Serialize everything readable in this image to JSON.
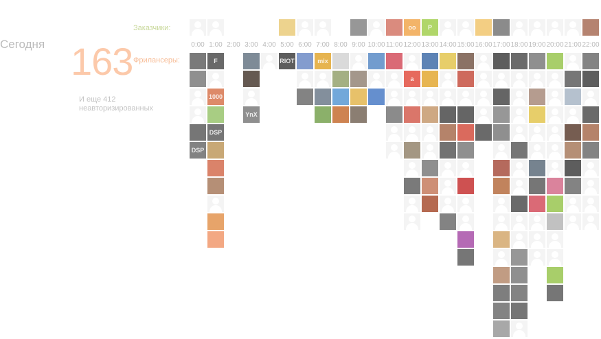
{
  "summary": {
    "today_label": "Сегодня",
    "freelancers_count": "163",
    "customers_label": "Заказчики:",
    "freelancers_label": "Фрилансеры:",
    "more_text": "И еще 412 неавторизированных"
  },
  "hours": [
    "0:00",
    "1:00",
    "2:00",
    "3:00",
    "4:00",
    "5:00",
    "6:00",
    "7:00",
    "8:00",
    "9:00",
    "10:00",
    "11:00",
    "12:00",
    "13:00",
    "14:00",
    "15:00",
    "16:00",
    "17:00",
    "18:00",
    "19:00",
    "20:00",
    "21:00",
    "22:00"
  ],
  "customers": {
    "0": [
      [
        "#e0e0e0",
        ""
      ],
      [
        "#ececec",
        ""
      ]
    ],
    "5": [
      [
        "#e8c66e",
        ""
      ],
      [
        "#ececec",
        ""
      ],
      [
        "#ececec",
        ""
      ]
    ],
    "9": [
      [
        "#7a7a7a",
        ""
      ],
      [
        "#ececec",
        ""
      ]
    ],
    "11": [
      [
        "#d06a5a",
        ""
      ],
      [
        "#f0a040",
        "oo"
      ]
    ],
    "13": [
      [
        "#9acb40",
        "P"
      ],
      [
        "#ececec",
        ""
      ]
    ],
    "15": [
      [
        "#ececec",
        ""
      ],
      [
        "#f0c060",
        ""
      ]
    ],
    "17": [
      [
        "#6a6a6a",
        ""
      ],
      [
        "#ececec",
        ""
      ]
    ],
    "19": [
      [
        "#ececec",
        ""
      ],
      [
        "#ececec",
        ""
      ]
    ],
    "21": [
      [
        "#ececec",
        ""
      ],
      [
        "#a06048",
        ""
      ]
    ]
  },
  "freelancers": [
    [
      [
        "#555555",
        ""
      ],
      [
        "#707070",
        ""
      ],
      [
        "#ececec",
        ""
      ],
      [
        "#ececec",
        ""
      ],
      [
        "#505050",
        ""
      ],
      [
        "#606060",
        "DSP"
      ]
    ],
    [
      [
        "#404040",
        "F"
      ],
      [
        "#ececec",
        ""
      ],
      [
        "#d46a40",
        "1000"
      ],
      [
        "#8fbf60",
        ""
      ],
      [
        "#505050",
        "DSP"
      ],
      [
        "#b89050",
        ""
      ],
      [
        "#d06040",
        ""
      ],
      [
        "#a07050",
        ""
      ],
      [
        "#ececec",
        ""
      ],
      [
        "#e08a40",
        ""
      ],
      [
        "#f09060",
        ""
      ]
    ],
    [],
    [
      [
        "#5a6a7a",
        ""
      ],
      [
        "#3a2a20",
        ""
      ],
      [
        "#ececec",
        ""
      ],
      [
        "#707070",
        "YnX"
      ]
    ],
    [
      [
        "#ececec",
        ""
      ]
    ],
    [
      [
        "#303030",
        "RIOT"
      ]
    ],
    [
      [
        "#6080c0",
        ""
      ],
      [
        "#ececec",
        ""
      ],
      [
        "#606060",
        ""
      ]
    ],
    [
      [
        "#e0a020",
        "mix"
      ],
      [
        "#ececec",
        ""
      ],
      [
        "#607080",
        ""
      ],
      [
        "#6a9a40",
        ""
      ]
    ],
    [
      [
        "#d0d0d0",
        ""
      ],
      [
        "#8a9a60",
        ""
      ],
      [
        "#4a90d0",
        ""
      ],
      [
        "#c06020",
        ""
      ]
    ],
    [
      [
        "#ececec",
        ""
      ],
      [
        "#8a7a6a",
        ""
      ],
      [
        "#e0b040",
        ""
      ],
      [
        "#6a5a4a",
        ""
      ]
    ],
    [
      [
        "#4a80c0",
        ""
      ],
      [
        "#ececec",
        ""
      ],
      [
        "#3a70c0",
        ""
      ]
    ],
    [
      [
        "#d04050",
        ""
      ],
      [
        "#ececec",
        ""
      ],
      [
        "#ececec",
        ""
      ],
      [
        "#6a6a6a",
        ""
      ],
      [
        "#ececec",
        ""
      ],
      [
        "#ececec",
        ""
      ]
    ],
    [
      [
        "#ececec",
        ""
      ],
      [
        "#e04030",
        "a"
      ],
      [
        "#ececec",
        ""
      ],
      [
        "#d05040",
        ""
      ],
      [
        "#ececec",
        ""
      ],
      [
        "#8a7a60",
        ""
      ],
      [
        "#ececec",
        ""
      ],
      [
        "#555555",
        ""
      ],
      [
        "#ececec",
        ""
      ],
      [
        "#ececec",
        ""
      ]
    ],
    [
      [
        "#3060a0",
        ""
      ],
      [
        "#e0a020",
        ""
      ],
      [
        "#ececec",
        ""
      ],
      [
        "#c09060",
        ""
      ],
      [
        "#ececec",
        ""
      ],
      [
        "#ececec",
        ""
      ],
      [
        "#707070",
        ""
      ],
      [
        "#c07050",
        ""
      ],
      [
        "#a04020",
        ""
      ]
    ],
    [
      [
        "#e0c040",
        ""
      ],
      [
        "#ececec",
        ""
      ],
      [
        "#ececec",
        ""
      ],
      [
        "#3a3a3a",
        ""
      ],
      [
        "#a06040",
        ""
      ],
      [
        "#4a4a4a",
        ""
      ],
      [
        "#ececec",
        ""
      ],
      [
        "#ececec",
        ""
      ],
      [
        "#ececec",
        ""
      ],
      [
        "#606060",
        ""
      ]
    ],
    [
      [
        "#6a4a3a",
        ""
      ],
      [
        "#c04030",
        ""
      ],
      [
        "#ececec",
        ""
      ],
      [
        "#3a3a3a",
        ""
      ],
      [
        "#d04030",
        ""
      ],
      [
        "#707070",
        ""
      ],
      [
        "#ececec",
        ""
      ],
      [
        "#c02020",
        ""
      ],
      [
        "#ececec",
        ""
      ],
      [
        "#ececec",
        ""
      ],
      [
        "#a040a0",
        ""
      ],
      [
        "#505050",
        ""
      ]
    ],
    [
      [
        "#ececec",
        ""
      ],
      [
        "#ececec",
        ""
      ],
      [
        "#ececec",
        ""
      ],
      [
        "#ececec",
        ""
      ],
      [
        "#404040",
        ""
      ]
    ],
    [
      [
        "#303030",
        ""
      ],
      [
        "#ececec",
        ""
      ],
      [
        "#3a3a3a",
        ""
      ],
      [
        "#7a7a7a",
        ""
      ],
      [
        "#707070",
        ""
      ],
      [
        "#ececec",
        ""
      ],
      [
        "#a04030",
        ""
      ],
      [
        "#b06030",
        ""
      ],
      [
        "#ececec",
        ""
      ],
      [
        "#ececec",
        ""
      ],
      [
        "#d0a060",
        ""
      ],
      [
        "#ececec",
        ""
      ],
      [
        "#b08060",
        ""
      ],
      [
        "#5a5a5a",
        ""
      ],
      [
        "#606060",
        ""
      ],
      [
        "#909090",
        ""
      ]
    ],
    [
      [
        "#404040",
        ""
      ],
      [
        "#ececec",
        ""
      ],
      [
        "#ececec",
        ""
      ],
      [
        "#ececec",
        ""
      ],
      [
        "#ececec",
        ""
      ],
      [
        "#505050",
        ""
      ],
      [
        "#ececec",
        ""
      ],
      [
        "#ececec",
        ""
      ],
      [
        "#404040",
        ""
      ],
      [
        "#ececec",
        ""
      ],
      [
        "#ececec",
        ""
      ],
      [
        "#7a7a7a",
        ""
      ],
      [
        "#707070",
        ""
      ],
      [
        "#606060",
        ""
      ],
      [
        "#505050",
        ""
      ],
      [
        "#ececec",
        ""
      ],
      [
        "#303030",
        ""
      ]
    ],
    [
      [
        "#707070",
        ""
      ],
      [
        "#ececec",
        ""
      ],
      [
        "#a08070",
        ""
      ],
      [
        "#e0c040",
        ""
      ],
      [
        "#ececec",
        ""
      ],
      [
        "#ececec",
        ""
      ],
      [
        "#506070",
        ""
      ],
      [
        "#505050",
        ""
      ],
      [
        "#d04050",
        ""
      ],
      [
        "#ececec",
        ""
      ],
      [
        "#ececec",
        ""
      ],
      [
        "#ececec",
        ""
      ]
    ],
    [
      [
        "#90c040",
        ""
      ],
      [
        "#ececec",
        ""
      ],
      [
        "#ececec",
        ""
      ],
      [
        "#ececec",
        ""
      ],
      [
        "#ececec",
        ""
      ],
      [
        "#ececec",
        ""
      ],
      [
        "#ececec",
        ""
      ],
      [
        "#d06080",
        ""
      ],
      [
        "#90c040",
        ""
      ],
      [
        "#b0b0b0",
        ""
      ],
      [
        "#ececec",
        ""
      ],
      [
        "#ececec",
        ""
      ],
      [
        "#90c040",
        ""
      ],
      [
        "#505050",
        ""
      ]
    ],
    [
      [
        "#ececec",
        ""
      ],
      [
        "#505050",
        ""
      ],
      [
        "#a0b0c0",
        ""
      ],
      [
        "#ececec",
        ""
      ],
      [
        "#503020",
        ""
      ],
      [
        "#a07050",
        ""
      ],
      [
        "#303030",
        ""
      ],
      [
        "#606060",
        ""
      ],
      [
        "#ececec",
        ""
      ],
      [
        "#ececec",
        ""
      ]
    ],
    [
      [
        "#606060",
        ""
      ],
      [
        "#303030",
        ""
      ],
      [
        "#ececec",
        ""
      ],
      [
        "#404040",
        ""
      ],
      [
        "#a06040",
        ""
      ],
      [
        "#606060",
        ""
      ],
      [
        "#ececec",
        ""
      ],
      [
        "#ececec",
        ""
      ],
      [
        "#ececec",
        ""
      ],
      [
        "#ececec",
        ""
      ]
    ]
  ]
}
